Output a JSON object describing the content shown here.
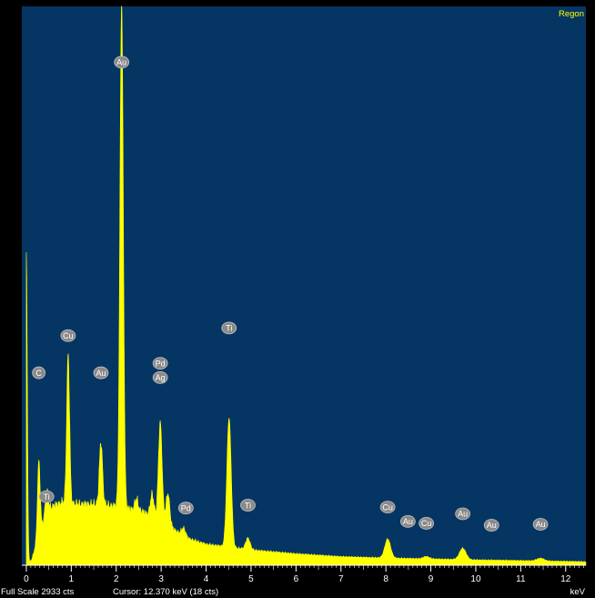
{
  "region_label": "Regon",
  "status": {
    "full_scale": "Full Scale 2933 cts",
    "cursor": "Cursor: 12.370 keV (18 cts)"
  },
  "colors": {
    "background": "#053563",
    "spectrum": "#ffff00",
    "marker": "#8a8a8a"
  },
  "chart_data": {
    "type": "area",
    "xlabel": "keV",
    "ylabel": "",
    "xlim": [
      -0.1,
      12.45
    ],
    "ylim": [
      0,
      2933
    ],
    "x_ticks": [
      "0",
      "1",
      "2",
      "3",
      "4",
      "5",
      "6",
      "7",
      "8",
      "9",
      "10",
      "11",
      "12"
    ],
    "grid": false,
    "baseline": [
      [
        0.12,
        30
      ],
      [
        0.3,
        180
      ],
      [
        0.5,
        300
      ],
      [
        0.8,
        330
      ],
      [
        1.2,
        320
      ],
      [
        1.5,
        320
      ],
      [
        2.0,
        310
      ],
      [
        2.6,
        280
      ],
      [
        3.2,
        200
      ],
      [
        3.6,
        140
      ],
      [
        4.0,
        110
      ],
      [
        5.0,
        80
      ],
      [
        6.0,
        60
      ],
      [
        7.0,
        45
      ],
      [
        8.0,
        38
      ],
      [
        9.0,
        33
      ],
      [
        10.0,
        28
      ],
      [
        11.0,
        24
      ],
      [
        12.0,
        20
      ],
      [
        12.45,
        18
      ]
    ],
    "series": [
      {
        "label": "C",
        "x": 0.0,
        "counts": 1640
      },
      {
        "label": "C",
        "x": 0.277,
        "counts": 390
      },
      {
        "label": "Ti",
        "x": 0.45,
        "counts": 120
      },
      {
        "label": "Cu",
        "x": 0.93,
        "counts": 780
      },
      {
        "label": "Au",
        "x": 1.66,
        "counts": 330
      },
      {
        "label": "Au",
        "x": 2.12,
        "counts": 2660
      },
      {
        "label": "",
        "x": 2.45,
        "counts": 60
      },
      {
        "label": "",
        "x": 2.8,
        "counts": 120
      },
      {
        "label": "Pd/Ag",
        "x": 2.98,
        "counts": 520
      },
      {
        "label": "",
        "x": 3.15,
        "counts": 170
      },
      {
        "label": "Pd",
        "x": 3.5,
        "counts": 40
      },
      {
        "label": "Ti",
        "x": 4.51,
        "counts": 680
      },
      {
        "label": "Ti",
        "x": 4.93,
        "counts": 60
      },
      {
        "label": "Cu",
        "x": 8.04,
        "counts": 100
      },
      {
        "label": "Cu",
        "x": 8.9,
        "counts": 12
      },
      {
        "label": "Au",
        "x": 9.71,
        "counts": 60
      },
      {
        "label": "Au",
        "x": 11.44,
        "counts": 14
      }
    ],
    "peak_labels": [
      {
        "text": "Au",
        "x": 2.12,
        "y": 2640
      },
      {
        "text": "C",
        "x": 0.277,
        "y": 1010
      },
      {
        "text": "Ti",
        "x": 0.45,
        "y": 360
      },
      {
        "text": "Cu",
        "x": 0.93,
        "y": 1205
      },
      {
        "text": "Au",
        "x": 1.66,
        "y": 1010
      },
      {
        "text": "Pd",
        "x": 2.98,
        "y": 1060
      },
      {
        "text": "Ag",
        "x": 2.98,
        "y": 985
      },
      {
        "text": "Pd",
        "x": 3.55,
        "y": 300
      },
      {
        "text": "Ti",
        "x": 4.51,
        "y": 1245
      },
      {
        "text": "Ti",
        "x": 4.93,
        "y": 315
      },
      {
        "text": "Cu",
        "x": 8.04,
        "y": 305
      },
      {
        "text": "Au",
        "x": 8.49,
        "y": 230
      },
      {
        "text": "Cu",
        "x": 8.9,
        "y": 220
      },
      {
        "text": "Au",
        "x": 9.71,
        "y": 270
      },
      {
        "text": "Au",
        "x": 10.35,
        "y": 210
      },
      {
        "text": "Au",
        "x": 11.44,
        "y": 215
      }
    ]
  }
}
